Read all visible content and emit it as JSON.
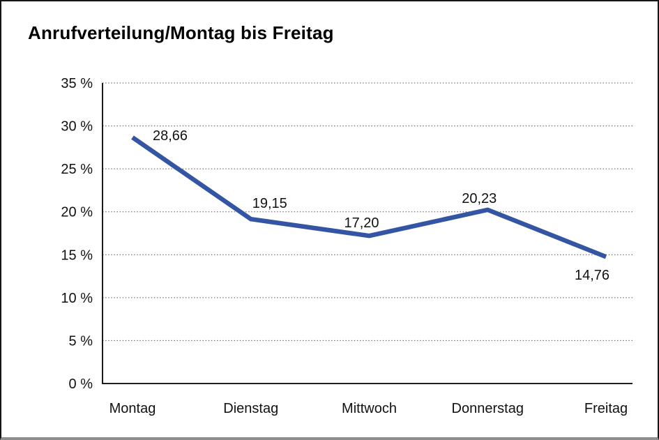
{
  "title": "Anrufverteilung/Montag bis Freitag",
  "colors": {
    "line": "#3355A4",
    "grid": "#555555",
    "axis": "#000000",
    "frame_border": "#151515",
    "frame_bottom": "#8E8E8E",
    "background": "#FFFFFF",
    "text": "#000000"
  },
  "chart_data": {
    "type": "line",
    "title": "Anrufverteilung/Montag bis Freitag",
    "categories": [
      "Montag",
      "Dienstag",
      "Mittwoch",
      "Donnerstag",
      "Freitag"
    ],
    "values": [
      28.66,
      19.15,
      17.2,
      20.23,
      14.76
    ],
    "point_labels": [
      "28,66",
      "19,15",
      "17,20",
      "20,23",
      "14,76"
    ],
    "y_ticks": [
      0,
      5,
      10,
      15,
      20,
      25,
      30,
      35
    ],
    "y_tick_labels": [
      "0 %",
      "5 %",
      "10 %",
      "15 %",
      "20 %",
      "25 %",
      "30 %",
      "35 %"
    ],
    "ylim": [
      0,
      35
    ],
    "xlabel": "",
    "ylabel": "",
    "legend": "none",
    "grid": "horizontal-dotted",
    "line_color": "#3355A4",
    "decimal_separator": ","
  }
}
